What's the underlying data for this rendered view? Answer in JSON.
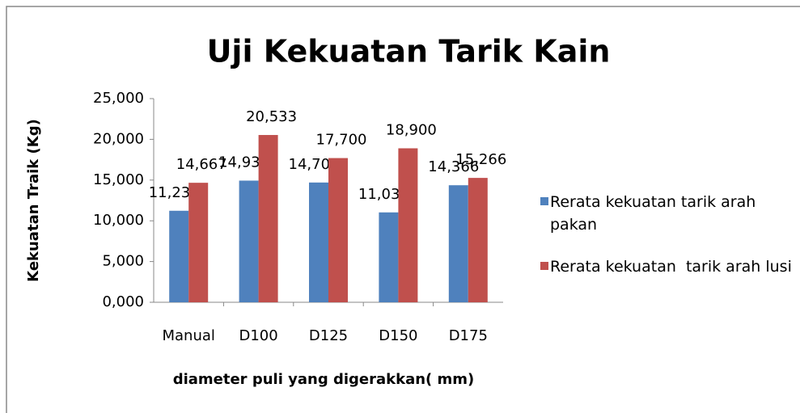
{
  "chart_data": {
    "type": "bar",
    "title": "Uji Kekuatan Tarik Kain",
    "x_label": "diameter puli yang digerakkan( mm)",
    "y_label": "Kekuatan Traik (Kg)",
    "categories": [
      "Manual",
      "D100",
      "D125",
      "D150",
      "D175"
    ],
    "series": [
      {
        "name": "Rerata kekuatan tarik arah pakan",
        "color": "#4f81bd",
        "values": [
          11.233,
          14.933,
          14.7,
          11.033,
          14.366
        ],
        "value_labels": [
          "11,233",
          "14,933",
          "14,700",
          "11,033",
          "14,366"
        ]
      },
      {
        "name": "Rerata kekuatan  tarik arah lusi",
        "color": "#c0504d",
        "values": [
          14.667,
          20.533,
          17.7,
          18.9,
          15.266
        ],
        "value_labels": [
          "14,667",
          "20,533",
          "17,700",
          "18,900",
          "15,266"
        ]
      }
    ],
    "ylim": [
      0,
      25
    ],
    "yticks": [
      {
        "value": 0,
        "label": "0,000"
      },
      {
        "value": 5,
        "label": "5,000"
      },
      {
        "value": 10,
        "label": "10,000"
      },
      {
        "value": 15,
        "label": "15,000"
      },
      {
        "value": 20,
        "label": "20,000"
      },
      {
        "value": 25,
        "label": "25,000"
      }
    ],
    "legend": "right"
  }
}
